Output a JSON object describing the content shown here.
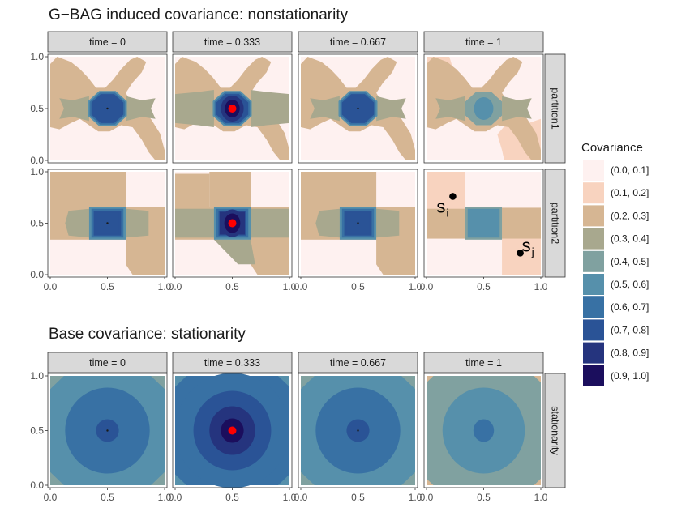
{
  "chart_data": [
    {
      "type": "heatmap",
      "title": "G−BAG induced covariance: nonstationarity",
      "facet_cols": [
        "time = 0",
        "time = 0.333",
        "time = 0.667",
        "time = 1"
      ],
      "facet_rows": [
        "partition1",
        "partition2"
      ],
      "x_ticks": [
        "0.0",
        "0.5",
        "1.0"
      ],
      "y_ticks": [
        "0.0",
        "0.5",
        "1.0"
      ],
      "xlim": [
        0,
        1
      ],
      "ylim": [
        0,
        1
      ],
      "reference_point": [
        0.5,
        0.5
      ],
      "annotations": [
        {
          "panel": "partition2 / time = 1",
          "base": "s",
          "sub": "i",
          "x": 0.23,
          "y": 0.76
        },
        {
          "panel": "partition2 / time = 1",
          "base": "s",
          "sub": "j",
          "x": 0.82,
          "y": 0.21
        }
      ]
    },
    {
      "type": "heatmap",
      "title": "Base covariance: stationarity",
      "facet_cols": [
        "time = 0",
        "time = 0.333",
        "time = 0.667",
        "time = 1"
      ],
      "facet_rows": [
        "stationarity"
      ],
      "x_ticks": [
        "0.0",
        "0.5",
        "1.0"
      ],
      "y_ticks": [
        "0.0",
        "0.5",
        "1.0"
      ],
      "xlim": [
        0,
        1
      ],
      "ylim": [
        0,
        1
      ],
      "reference_point": [
        0.5,
        0.5
      ]
    }
  ],
  "legend": {
    "title": "Covariance",
    "bins": [
      {
        "label": "(0.0, 0.1]",
        "color": "#FEF1F0"
      },
      {
        "label": "(0.1, 0.2]",
        "color": "#F8D3BF"
      },
      {
        "label": "(0.2, 0.3]",
        "color": "#D6B693"
      },
      {
        "label": "(0.3, 0.4]",
        "color": "#A8A88E"
      },
      {
        "label": "(0.4, 0.5]",
        "color": "#80A1A0"
      },
      {
        "label": "(0.5, 0.6]",
        "color": "#5690AB"
      },
      {
        "label": "(0.6, 0.7]",
        "color": "#3871A4"
      },
      {
        "label": "(0.7, 0.8]",
        "color": "#2A5396"
      },
      {
        "label": "(0.8, 0.9]",
        "color": "#25347E"
      },
      {
        "label": "(0.9, 1.0]",
        "color": "#1B0E5D"
      }
    ]
  },
  "colors": {
    "strip_fill": "#D9D9D9",
    "strip_border": "#333333",
    "panel_border": "#333333",
    "point_red": "#FF0000",
    "point_black": "#000000"
  }
}
